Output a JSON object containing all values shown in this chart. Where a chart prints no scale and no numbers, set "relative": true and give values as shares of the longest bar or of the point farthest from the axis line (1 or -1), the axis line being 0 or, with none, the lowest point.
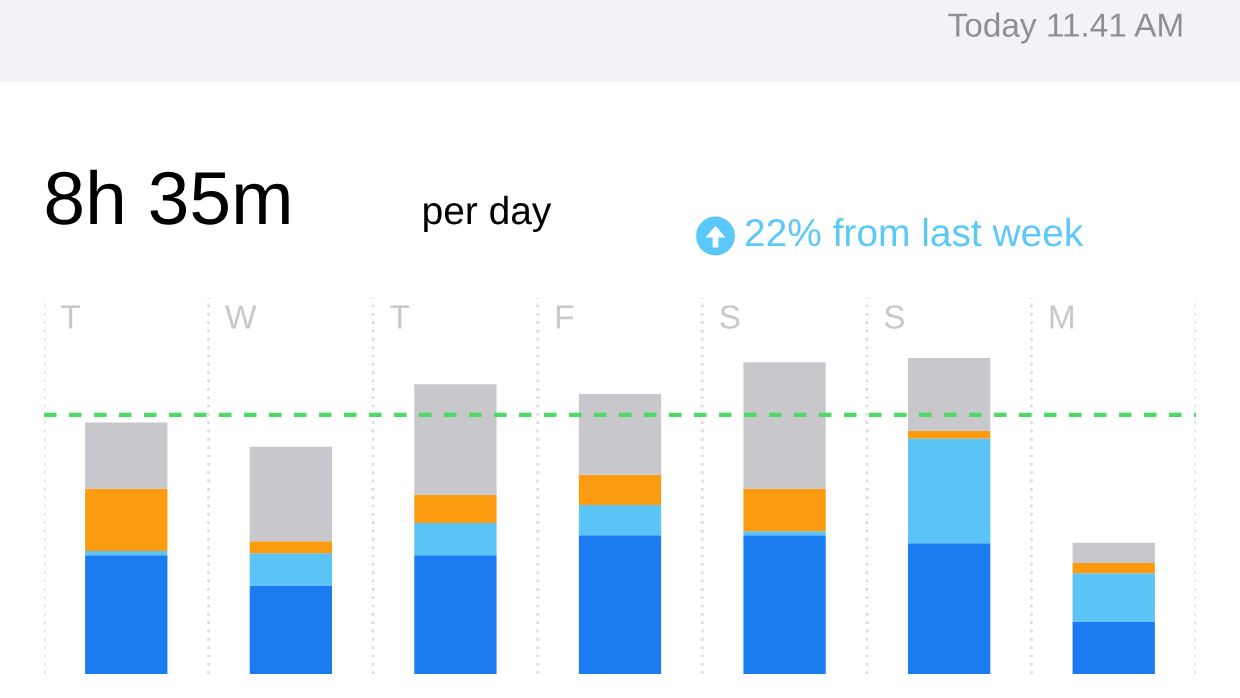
{
  "chart_data": {
    "type": "bar",
    "stacked": true,
    "relative": true,
    "title": "8h 35m",
    "subtitle": "per day",
    "annotations": [
      "Today 11.41 AM",
      "22% from last week"
    ],
    "categories": [
      "T",
      "W",
      "T",
      "F",
      "S",
      "S",
      "M"
    ],
    "series": [
      {
        "color": "#1a7cf0",
        "values": [
          0.376,
          0.28,
          0.376,
          0.439,
          0.439,
          0.414,
          0.166
        ]
      },
      {
        "color": "#5ac4f7",
        "values": [
          0.013,
          0.102,
          0.102,
          0.096,
          0.013,
          0.331,
          0.153
        ]
      },
      {
        "color": "#fb9b0f",
        "values": [
          0.197,
          0.038,
          0.089,
          0.096,
          0.134,
          0.025,
          0.032
        ]
      },
      {
        "color": "#c7c7cc",
        "values": [
          0.21,
          0.299,
          0.35,
          0.255,
          0.401,
          0.23,
          0.064
        ]
      }
    ],
    "ref_lines": [
      {
        "axis": "y",
        "value": 0.82,
        "color": "#4cd964",
        "line_style": "dashed"
      }
    ],
    "grid": "x",
    "legend": false
  }
}
